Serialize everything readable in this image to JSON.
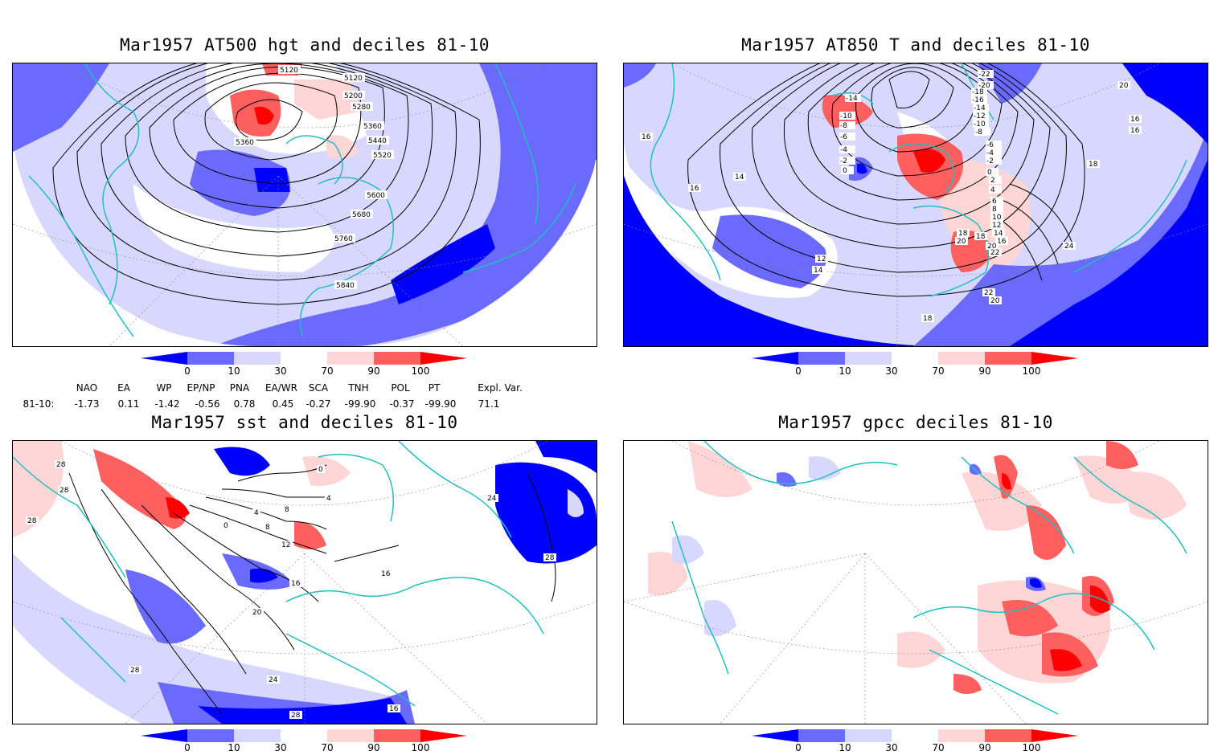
{
  "panels": {
    "p1": {
      "title": "Mar1957 AT500 hgt and deciles 81-10",
      "contour_labels": [
        "5120",
        "5120",
        "5200",
        "5280",
        "5360",
        "5360",
        "5440",
        "5520",
        "5600",
        "5680",
        "5760",
        "5840"
      ]
    },
    "p2": {
      "title": "Mar1957 AT850 T and deciles 81-10",
      "contour_labels": [
        "-22",
        "-20",
        "-18",
        "-16",
        "-14",
        "-12",
        "-10",
        "-8",
        "-6",
        "-4",
        "-2",
        "0",
        "-14",
        "-10",
        "-8",
        "-6",
        "-4",
        "-2",
        "0",
        "2",
        "4",
        "6",
        "8",
        "10",
        "12",
        "14",
        "16",
        "18",
        "20",
        "22",
        "24",
        "16",
        "14",
        "16",
        "12",
        "14",
        "18",
        "20",
        "22",
        "20",
        "18",
        "16",
        "16",
        "18",
        "20"
      ]
    },
    "p3": {
      "title": "Mar1957 sst and deciles 81-10",
      "contour_labels": [
        "28",
        "28",
        "28",
        "0",
        "4",
        "8",
        "12",
        "16",
        "16",
        "20",
        "24",
        "28",
        "28",
        "24",
        "28",
        "0",
        "4",
        "8",
        "16"
      ]
    },
    "p4": {
      "title": "Mar1957 gpcc deciles 81-10"
    }
  },
  "colorbar": {
    "labels": [
      "0",
      "10",
      "30",
      "70",
      "90",
      "100"
    ],
    "colors": {
      "dark_blue": "#0000ff",
      "mid_blue": "#6a6aff",
      "light_blue": "#d8d8ff",
      "light_red": "#ffd6d6",
      "mid_red": "#ff5f5f",
      "dark_red": "#ff0000"
    }
  },
  "indices": {
    "headers": [
      "NAO",
      "EA",
      "WP",
      "EP/NP",
      "PNA",
      "EA/WR",
      "SCA",
      "TNH",
      "POL",
      "PT",
      "Expl. Var."
    ],
    "row_label": "81-10:",
    "values": [
      "-1.73",
      "0.11",
      "-1.42",
      "-0.56",
      "0.78",
      "0.45",
      "-0.27",
      "-99.90",
      "-0.37",
      "-99.90",
      "71.1"
    ]
  },
  "coastline_color": "#20c0c0"
}
